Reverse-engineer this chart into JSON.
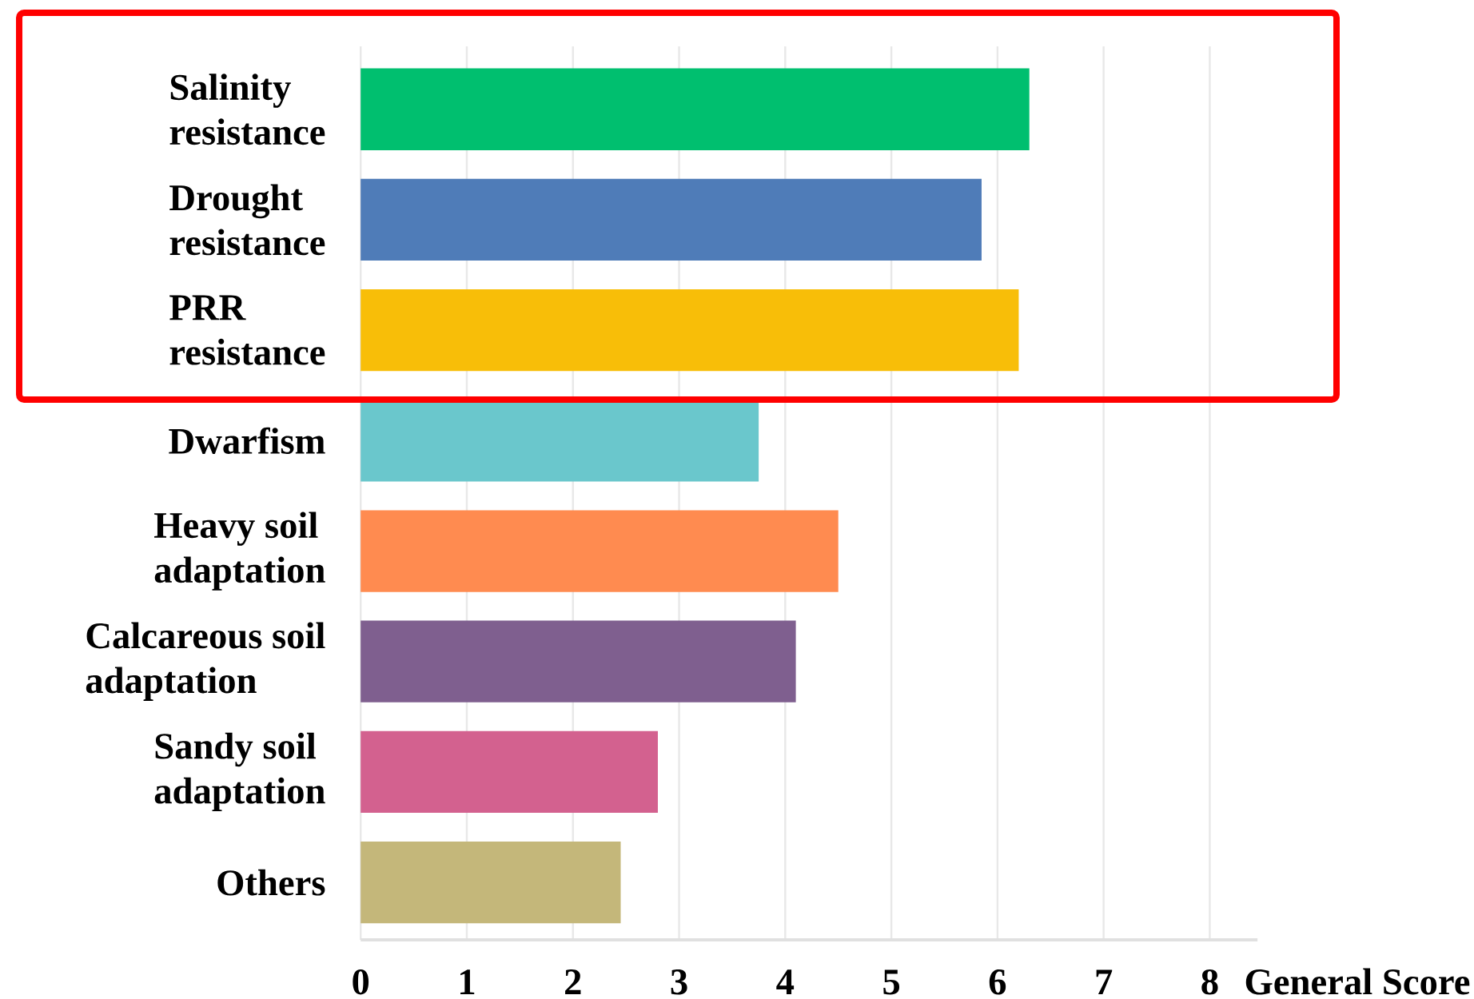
{
  "chart_data": {
    "type": "bar",
    "orientation": "horizontal",
    "categories": [
      "Salinity resistance",
      "Drought resistance",
      "PRR resistance",
      "Dwarfism",
      "Heavy soil adaptation",
      "Calcareous soil adaptation",
      "Sandy soil adaptation",
      "Others"
    ],
    "values": [
      6.3,
      5.85,
      6.2,
      3.75,
      4.5,
      4.1,
      2.8,
      2.45
    ],
    "colors": [
      "#00bf6f",
      "#4f7cb8",
      "#f8be08",
      "#6ac7cc",
      "#ff8b50",
      "#7f5f8f",
      "#d3618f",
      "#c4b77a"
    ],
    "xlabel": "General Score",
    "xlim": [
      0,
      8.45
    ],
    "xticks": [
      0,
      1,
      2,
      3,
      4,
      5,
      6,
      7,
      8
    ],
    "grid": "x"
  }
}
